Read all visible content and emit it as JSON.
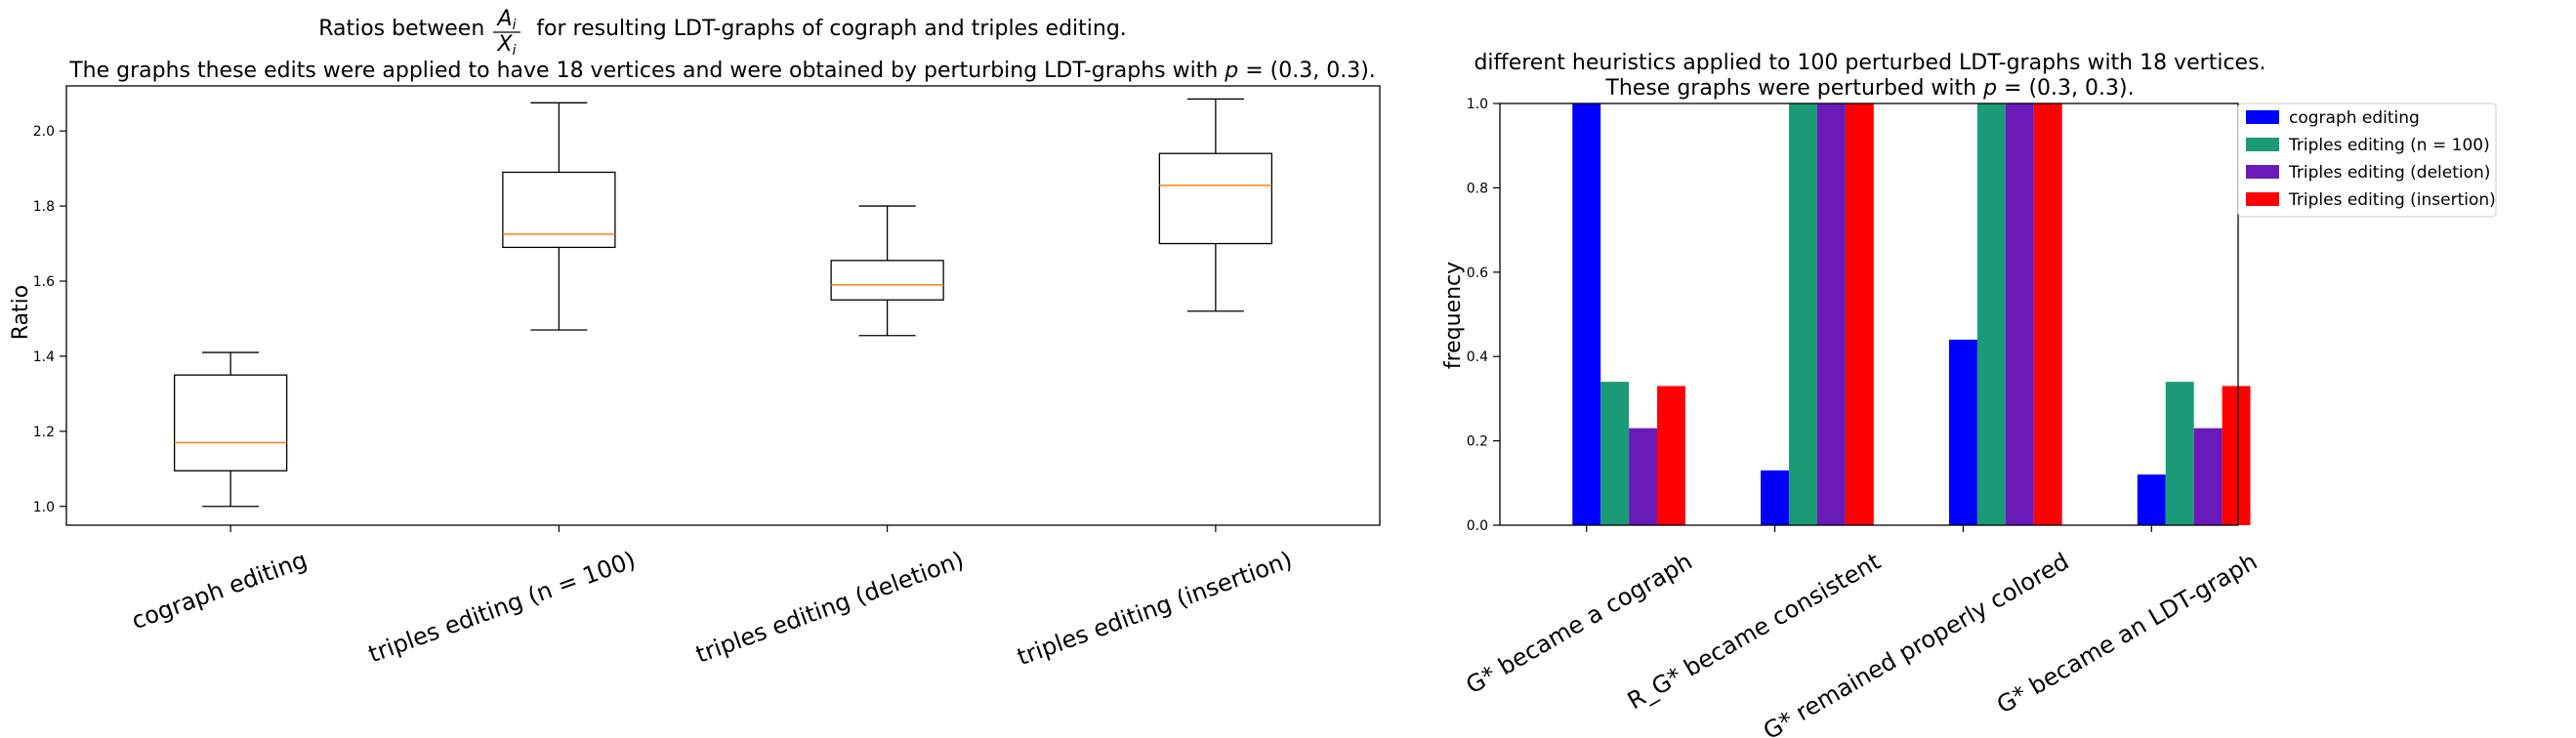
{
  "chart_data": [
    {
      "type": "box",
      "title_line1": "Ratios between A_i / X_i for resulting LDT-graphs of cograph and triples editing.",
      "title_line2": "The graphs these edits were applied to have 18 vertices and were obtained by perturbing LDT-graphs with p = (0.3, 0.3).",
      "ylabel": "Ratio",
      "ylim": [
        0.95,
        2.12
      ],
      "yticks": [
        "1.0",
        "1.2",
        "1.4",
        "1.6",
        "1.8",
        "2.0"
      ],
      "categories": [
        "cograph editing",
        "triples editing (n = 100)",
        "triples editing (deletion)",
        "triples editing (insertion)"
      ],
      "boxes": [
        {
          "whisker_low": 1.0,
          "q1": 1.095,
          "median": 1.17,
          "q3": 1.35,
          "whisker_high": 1.41
        },
        {
          "whisker_low": 1.47,
          "q1": 1.69,
          "median": 1.725,
          "q3": 1.89,
          "whisker_high": 2.075
        },
        {
          "whisker_low": 1.455,
          "q1": 1.55,
          "median": 1.59,
          "q3": 1.655,
          "whisker_high": 1.8
        },
        {
          "whisker_low": 1.52,
          "q1": 1.7,
          "median": 1.855,
          "q3": 1.94,
          "whisker_high": 2.085
        }
      ],
      "colors": {
        "box": "#000000",
        "median": "#ff7f0e"
      }
    },
    {
      "type": "bar",
      "title_line1": "different heuristics applied to 100 perturbed LDT-graphs with 18 vertices.",
      "title_line2": "These graphs were perturbed with p = (0.3, 0.3).",
      "ylabel": "frequency",
      "ylim": [
        0,
        1.0
      ],
      "yticks": [
        "0.0",
        "0.2",
        "0.4",
        "0.6",
        "0.8",
        "1.0"
      ],
      "categories": [
        "G* became a cograph",
        "R_G* became consistent",
        "G* remained properly colored",
        "G* became an LDT-graph"
      ],
      "series": [
        {
          "name": "cograph editing",
          "color": "#0000ff",
          "values": [
            1.0,
            0.13,
            0.44,
            0.12
          ]
        },
        {
          "name": "Triples editing (n = 100)",
          "color": "#1a9a76",
          "values": [
            0.34,
            1.0,
            1.0,
            0.34
          ]
        },
        {
          "name": "Triples editing (deletion)",
          "color": "#6a1ab8",
          "values": [
            0.23,
            1.0,
            1.0,
            0.23
          ]
        },
        {
          "name": "Triples editing (insertion)",
          "color": "#ff0000",
          "values": [
            0.33,
            1.0,
            1.0,
            0.33
          ]
        }
      ],
      "legend_position": "upper-right-outside"
    }
  ]
}
